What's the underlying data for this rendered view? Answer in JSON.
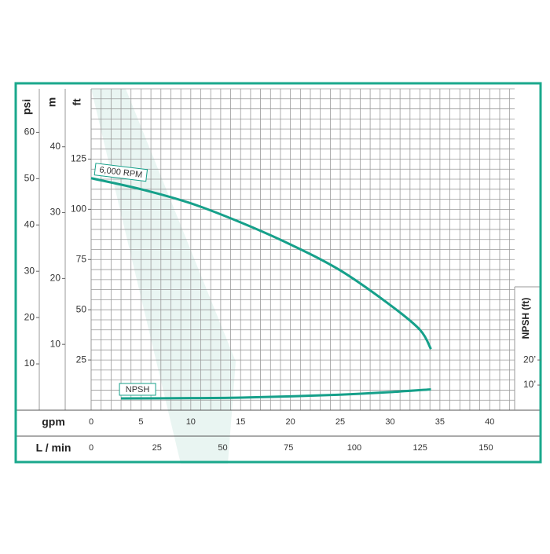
{
  "chart_data": {
    "type": "line",
    "x_label": "gpm",
    "xlim": [
      0,
      42.5
    ],
    "xticks": [
      0,
      5,
      10,
      15,
      20,
      25,
      30,
      35,
      40
    ],
    "x2_label": "L / min",
    "x2lim": [
      0,
      160.9
    ],
    "x2ticks": [
      0,
      25,
      50,
      75,
      100,
      125,
      150
    ],
    "y_label": "ft",
    "ylim": [
      0,
      160
    ],
    "yticks": [
      25,
      50,
      75,
      100,
      125
    ],
    "psi_label": "psi",
    "psilim": [
      0,
      69.4
    ],
    "psiticks": [
      10,
      20,
      30,
      40,
      50,
      60
    ],
    "m_label": "m",
    "mlim": [
      0,
      48.8
    ],
    "mticks": [
      10,
      20,
      30,
      40
    ],
    "y2_label": "NPSH (ft)",
    "y2lim": [
      0,
      128
    ],
    "y2ticks": [
      {
        "value": 10,
        "label": "10’"
      },
      {
        "value": 20,
        "label": "20’"
      }
    ],
    "grid": true,
    "series": [
      {
        "name": "6,000 RPM",
        "color": "#16a08a",
        "x": [
          0,
          5,
          10,
          15,
          20,
          25,
          30,
          33,
          34.1
        ],
        "values": [
          115.5,
          110,
          103,
          93.5,
          82.5,
          69.6,
          52.4,
          40,
          30.4
        ]
      },
      {
        "name": "NPSH",
        "color": "#16a08a",
        "axis": "y2",
        "x": [
          3,
          10,
          15,
          20,
          25,
          30,
          34.1
        ],
        "values": [
          4.7,
          4.8,
          5,
          5.5,
          6.2,
          7.2,
          8.3
        ]
      }
    ]
  }
}
